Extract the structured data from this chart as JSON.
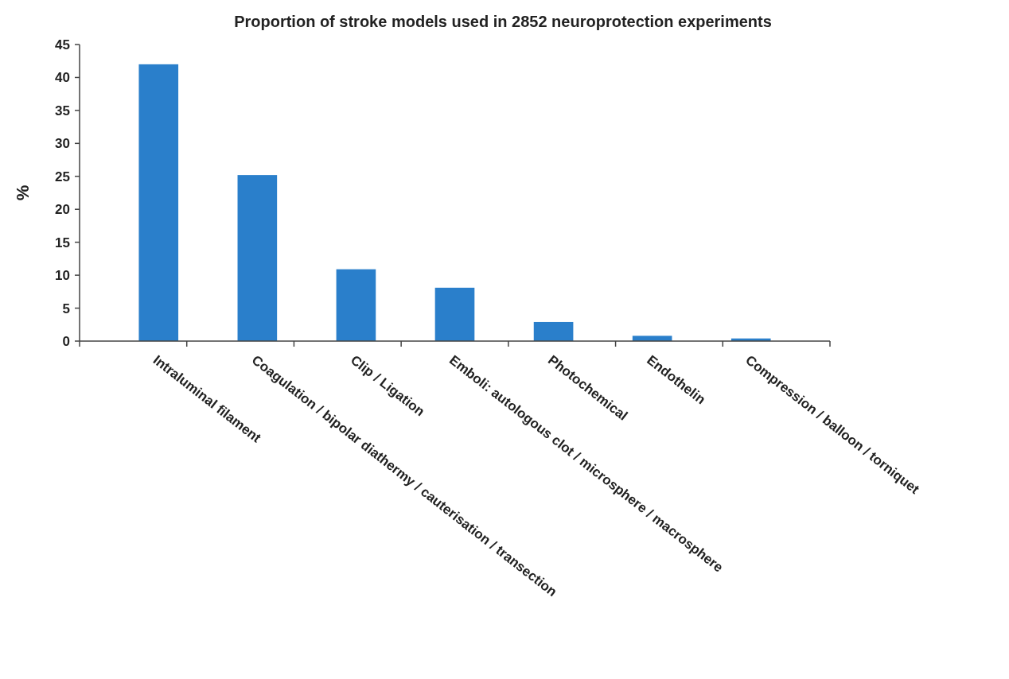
{
  "chart_data": {
    "type": "bar",
    "title": "Proportion of stroke models used in 2852 neuroprotection experiments",
    "ylabel": "%",
    "categories": [
      "Intraluminal filament",
      "Coagulation / bipolar diathermy / cauterisation / transection",
      "Clip / Ligation",
      "Emboli: autologous clot / microsphere / macrosphere",
      "Photochemical",
      "Endothelin",
      "Compression / balloon / torniquet"
    ],
    "values": [
      42.0,
      25.2,
      10.9,
      8.1,
      2.9,
      0.8,
      0.4
    ],
    "color": "#2a7fcb",
    "ylim": [
      0,
      45
    ],
    "yticks": [
      0,
      5,
      10,
      15,
      20,
      25,
      30,
      35,
      40,
      45
    ],
    "grid": false
  }
}
